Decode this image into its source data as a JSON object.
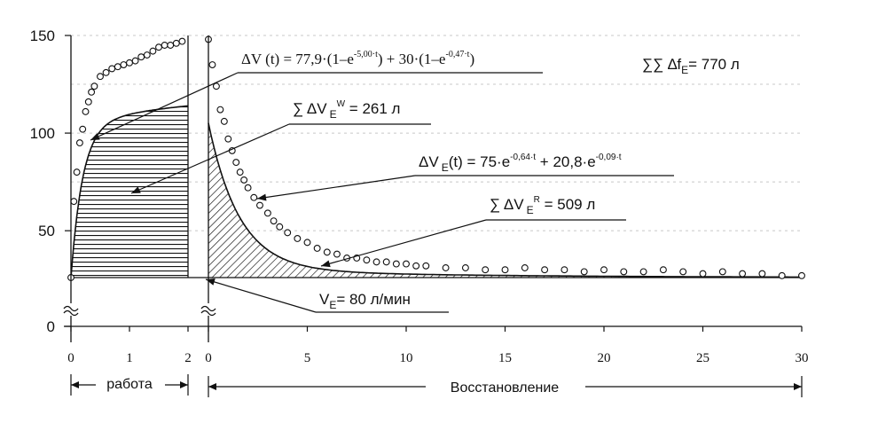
{
  "chart_data": {
    "type": "line",
    "y_ticks": [
      "0",
      "50",
      "100",
      "150"
    ],
    "ylim": [
      0,
      150
    ],
    "work": {
      "label": "работа",
      "x_ticks": [
        "0",
        "1",
        "2"
      ],
      "xlim": [
        0,
        2
      ],
      "fit": {
        "a": 77.9,
        "k1": 5.0,
        "b": 30,
        "k2": 0.47,
        "base": 26
      },
      "points": [
        [
          0.0,
          26
        ],
        [
          0.05,
          65
        ],
        [
          0.1,
          80
        ],
        [
          0.15,
          95
        ],
        [
          0.2,
          102
        ],
        [
          0.25,
          111
        ],
        [
          0.3,
          116
        ],
        [
          0.35,
          121
        ],
        [
          0.4,
          124
        ],
        [
          0.5,
          129
        ],
        [
          0.6,
          131
        ],
        [
          0.7,
          133
        ],
        [
          0.8,
          134
        ],
        [
          0.9,
          135
        ],
        [
          1.0,
          136
        ],
        [
          1.1,
          137
        ],
        [
          1.2,
          139
        ],
        [
          1.3,
          140
        ],
        [
          1.4,
          142
        ],
        [
          1.5,
          144
        ],
        [
          1.6,
          145
        ],
        [
          1.7,
          145
        ],
        [
          1.8,
          146
        ],
        [
          1.9,
          147
        ]
      ]
    },
    "recovery": {
      "label": "Восстановление",
      "x_ticks": [
        "0",
        "5",
        "10",
        "15",
        "20",
        "25",
        "30"
      ],
      "xlim": [
        0,
        30
      ],
      "fit": {
        "a": 75,
        "k1": 0.64,
        "b": 20.8,
        "k2": 0.09,
        "base": 26
      },
      "points": [
        [
          0.0,
          148
        ],
        [
          0.2,
          135
        ],
        [
          0.4,
          124
        ],
        [
          0.6,
          112
        ],
        [
          0.8,
          106
        ],
        [
          1.0,
          97
        ],
        [
          1.2,
          91
        ],
        [
          1.4,
          85
        ],
        [
          1.6,
          80
        ],
        [
          1.8,
          76
        ],
        [
          2.0,
          72
        ],
        [
          2.3,
          67
        ],
        [
          2.6,
          63
        ],
        [
          3.0,
          59
        ],
        [
          3.3,
          55
        ],
        [
          3.6,
          52
        ],
        [
          4.0,
          49
        ],
        [
          4.5,
          46
        ],
        [
          5.0,
          44
        ],
        [
          5.5,
          41
        ],
        [
          6.0,
          39
        ],
        [
          6.5,
          38
        ],
        [
          7.0,
          36
        ],
        [
          7.5,
          36
        ],
        [
          8.0,
          35
        ],
        [
          8.5,
          34
        ],
        [
          9.0,
          34
        ],
        [
          9.5,
          33
        ],
        [
          10.0,
          33
        ],
        [
          10.5,
          32
        ],
        [
          11.0,
          32
        ],
        [
          12.0,
          31
        ],
        [
          13.0,
          31
        ],
        [
          14.0,
          30
        ],
        [
          15.0,
          30
        ],
        [
          16.0,
          31
        ],
        [
          17.0,
          30
        ],
        [
          18.0,
          30
        ],
        [
          19.0,
          29
        ],
        [
          20.0,
          30
        ],
        [
          21.0,
          29
        ],
        [
          22.0,
          29
        ],
        [
          23.0,
          30
        ],
        [
          24.0,
          29
        ],
        [
          25.0,
          28
        ],
        [
          26.0,
          29
        ],
        [
          27.0,
          28
        ],
        [
          28.0,
          28
        ],
        [
          29.0,
          27
        ],
        [
          30.0,
          27
        ]
      ]
    },
    "annotations": {
      "work_fit": {
        "prefix": "ΔV (t) = 77,9·(1–e",
        "exp1": "-5,00·t",
        "middle": ") + 30·(1–e",
        "exp2": "-0,47·t",
        "suffix": ")"
      },
      "work_sum": {
        "prefix": "∑ ΔV",
        "sub": "E",
        "sup": "W",
        "suffix": " = 261 л"
      },
      "recovery_fit": {
        "prefix": "ΔV",
        "sub": "E",
        "mid1": "(t) = 75·e",
        "exp1": "-0,64·t",
        "mid2": " + 20,8·e",
        "exp2": "-0,09·t"
      },
      "recovery_sum": {
        "prefix": "∑ ΔV",
        "sub": "E",
        "sup": "R",
        "suffix": " = 509 л"
      },
      "total": {
        "prefix": "∑∑ ∆f",
        "sub": "E",
        "suffix": "= 770 л"
      },
      "baseline": {
        "prefix": "V",
        "sub": "E",
        "suffix": "= 80 л/мин"
      }
    }
  }
}
